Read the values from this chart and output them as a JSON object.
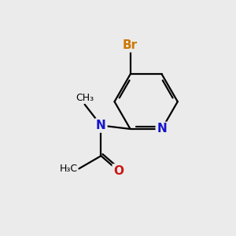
{
  "background_color": "#ebebeb",
  "atom_color_N": "#1414cc",
  "atom_color_O": "#cc1414",
  "atom_color_Br": "#cc7700",
  "atom_color_C": "#000000",
  "bond_color": "#000000",
  "bond_lw": 1.6,
  "font_size_hetero": 11,
  "font_size_label": 9,
  "figsize": [
    3.0,
    3.0
  ],
  "dpi": 100,
  "xlim": [
    0,
    10
  ],
  "ylim": [
    0,
    10
  ]
}
